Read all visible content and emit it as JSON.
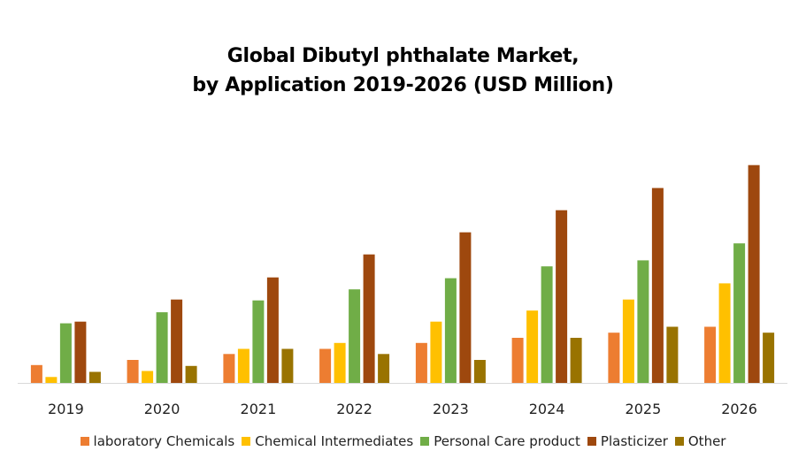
{
  "chart_data": {
    "type": "bar",
    "title_lines": [
      "Global Dibutyl phthalate Market,",
      "by Application 2019-2026 (USD Million)"
    ],
    "xlabel": "",
    "ylabel": "",
    "categories": [
      "2019",
      "2020",
      "2021",
      "2022",
      "2023",
      "2024",
      "2025",
      "2026"
    ],
    "ylim": [
      0,
      265
    ],
    "grid": false,
    "legend_position": "bottom",
    "series": [
      {
        "name": "laboratory Chemicals",
        "color": "#ED7D31",
        "values": [
          21,
          27,
          34,
          40,
          47,
          53,
          59,
          66
        ]
      },
      {
        "name": "Chemical Intermediates",
        "color": "#FFC000",
        "values": [
          7,
          14,
          40,
          47,
          72,
          85,
          98,
          117
        ]
      },
      {
        "name": "Personal Care product",
        "color": "#70AD47",
        "values": [
          70,
          83,
          97,
          110,
          123,
          137,
          144,
          164
        ]
      },
      {
        "name": "Plasticizer",
        "color": "#9E480E",
        "values": [
          72,
          98,
          124,
          151,
          177,
          203,
          229,
          256
        ]
      },
      {
        "name": "Other",
        "color": "#997300",
        "values": [
          13,
          20,
          40,
          34,
          27,
          53,
          66,
          59
        ]
      }
    ]
  }
}
